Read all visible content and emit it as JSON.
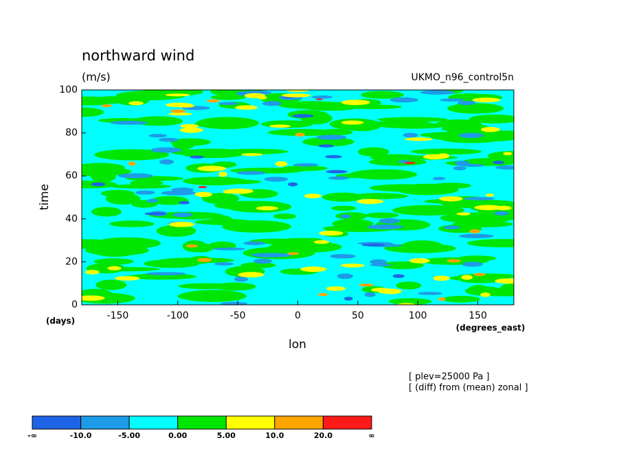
{
  "chart_data": {
    "type": "contour",
    "title": "northward wind",
    "units": "(m/s)",
    "dataset": "UKMO_n96_control5n",
    "ylabel": "time",
    "yunits": "(days)",
    "xlabel": "lon",
    "xunits": "(degrees_east)",
    "xlim": [
      -180,
      180
    ],
    "xticks": [
      -150,
      -100,
      -50,
      0,
      50,
      100,
      150
    ],
    "ylim": [
      0,
      100
    ],
    "yticks": [
      0,
      20,
      40,
      60,
      80,
      100
    ],
    "annotations": [
      "[ plev=25000 Pa ]",
      "[ (diff) from (mean) zonal ]"
    ],
    "colorbar": {
      "labels": [
        "-∞",
        "-10.0",
        "-5.00",
        "0.00",
        "5.00",
        "10.0",
        "20.0",
        "∞"
      ],
      "colors": [
        "#1e64e6",
        "#1e9be6",
        "#00ffff",
        "#00e600",
        "#ffff00",
        "#ffa500",
        "#ff1a1a"
      ]
    }
  }
}
